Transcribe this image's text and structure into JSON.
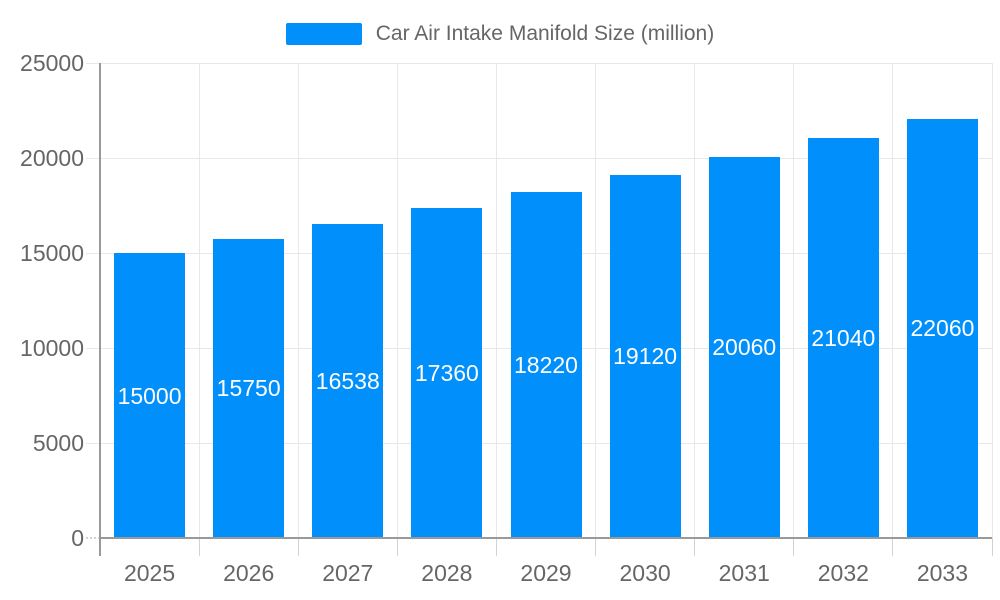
{
  "chart_data": {
    "type": "bar",
    "title": "Car Air Intake Manifold Size (million)",
    "categories": [
      "2025",
      "2026",
      "2027",
      "2028",
      "2029",
      "2030",
      "2031",
      "2032",
      "2033"
    ],
    "values": [
      15000,
      15750,
      16538,
      17360,
      18220,
      19120,
      20060,
      21040,
      22060
    ],
    "data_labels": [
      "15000",
      "15750",
      "16538",
      "17360",
      "18220",
      "19120",
      "20060",
      "21040",
      "22060"
    ],
    "y_ticks": [
      0,
      5000,
      10000,
      15000,
      20000,
      25000
    ],
    "y_tick_labels": [
      "0",
      "5000",
      "10000",
      "15000",
      "20000",
      "25000"
    ],
    "ylim": [
      0,
      25000
    ],
    "xlabel": "",
    "ylabel": "",
    "grid": "on",
    "legend_position": "top",
    "colors": {
      "bar": "#008ffb",
      "data_label": "#ffffff",
      "axis_label": "#666666",
      "legend_text": "#666666",
      "gridline": "#e8e8e8",
      "tick": "#d2d2d2",
      "axis_line": "#999999",
      "background": "#ffffff"
    }
  }
}
